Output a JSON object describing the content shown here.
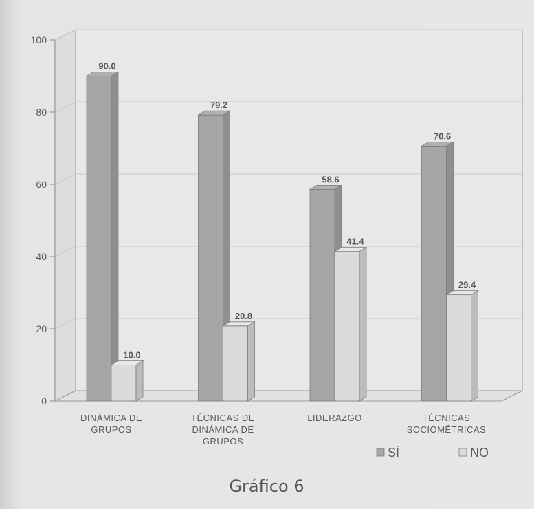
{
  "chart_data": {
    "type": "bar",
    "categories": [
      [
        "DINÁMICA DE",
        "GRUPOS"
      ],
      [
        "TÉCNICAS DE",
        "DINÁMICA DE",
        "GRUPOS"
      ],
      [
        "LIDERAZGO"
      ],
      [
        "TÉCNICAS",
        "SOCIOMÉTRICAS"
      ]
    ],
    "series": [
      {
        "name": "SÍ",
        "values": [
          90.0,
          79.2,
          58.6,
          70.6
        ],
        "labels": [
          "90.0",
          "79.2",
          "58.6",
          "70.6"
        ]
      },
      {
        "name": "NO",
        "values": [
          10.0,
          20.8,
          41.4,
          29.4
        ],
        "labels": [
          "10.0",
          "20.8",
          "41.4",
          "29.4"
        ]
      }
    ],
    "yticks": [
      "0",
      "20",
      "40",
      "60",
      "80",
      "100"
    ],
    "ylim": [
      0,
      100
    ],
    "grid": true,
    "legend": "bottom-right",
    "colors": {
      "SI": "#a7a6a4",
      "NO": "#dcdbd9"
    }
  },
  "caption": "Gráfico 6"
}
